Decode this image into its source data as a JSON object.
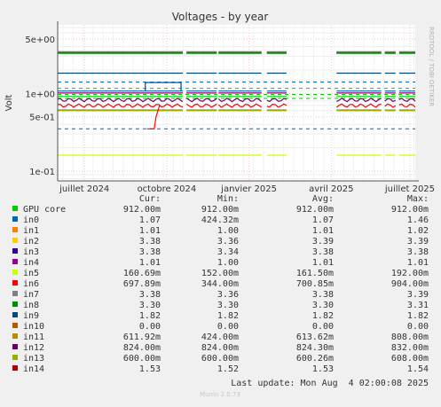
{
  "chart_data": {
    "type": "line",
    "title": "Voltages - by year",
    "ylabel": "Volt",
    "y_scale": "log",
    "y_ticks": [
      {
        "value": 5.0,
        "label": "5e+00"
      },
      {
        "value": 1.0,
        "label": "1e+00"
      },
      {
        "value": 0.5,
        "label": "5e-01"
      },
      {
        "value": 0.1,
        "label": "1e-01"
      }
    ],
    "x_ticks": [
      "juillet 2024",
      "octobre 2024",
      "janvier 2025",
      "avril 2025",
      "juillet 2025"
    ],
    "side_label": "RRDTOOL / TOBI OETIKER",
    "grid": true,
    "table_headers": [
      "Cur:",
      "Min:",
      "Avg:",
      "Max:"
    ],
    "series": [
      {
        "name": "GPU core",
        "color": "#00cc00",
        "cur": "912.00m",
        "min": "912.00m",
        "avg": "912.00m",
        "max": "912.00m",
        "level": 0.912,
        "dashed": true
      },
      {
        "name": "in0",
        "color": "#0066b3",
        "cur": "1.07",
        "min": "424.32m",
        "avg": "1.07",
        "max": "1.46",
        "level": 1.07,
        "dashed": false
      },
      {
        "name": "in1",
        "color": "#ff8000",
        "cur": "1.01",
        "min": "1.00",
        "avg": "1.01",
        "max": "1.02",
        "level": 1.01,
        "dashed": false
      },
      {
        "name": "in2",
        "color": "#ffcc00",
        "cur": "3.38",
        "min": "3.36",
        "avg": "3.39",
        "max": "3.39",
        "level": 3.38,
        "dashed": false
      },
      {
        "name": "in3",
        "color": "#330099",
        "cur": "3.38",
        "min": "3.34",
        "avg": "3.38",
        "max": "3.38",
        "level": 3.38,
        "dashed": false
      },
      {
        "name": "in4",
        "color": "#990099",
        "cur": "1.01",
        "min": "1.00",
        "avg": "1.01",
        "max": "1.01",
        "level": 1.01,
        "dashed": false
      },
      {
        "name": "in5",
        "color": "#ccff00",
        "cur": "160.69m",
        "min": "152.00m",
        "avg": "161.50m",
        "max": "192.00m",
        "level": 0.1607,
        "dashed": false
      },
      {
        "name": "in6",
        "color": "#ff0000",
        "cur": "697.89m",
        "min": "344.00m",
        "avg": "700.85m",
        "max": "904.00m",
        "level": 0.698,
        "dashed": false
      },
      {
        "name": "in7",
        "color": "#808080",
        "cur": "3.38",
        "min": "3.36",
        "avg": "3.38",
        "max": "3.39",
        "level": 3.38,
        "dashed": false
      },
      {
        "name": "in8",
        "color": "#008f00",
        "cur": "3.30",
        "min": "3.30",
        "avg": "3.30",
        "max": "3.31",
        "level": 3.3,
        "dashed": false
      },
      {
        "name": "in9",
        "color": "#00487d",
        "cur": "1.82",
        "min": "1.82",
        "avg": "1.82",
        "max": "1.82",
        "level": 1.82,
        "dashed": false
      },
      {
        "name": "in10",
        "color": "#b35a00",
        "cur": "0.00",
        "min": "0.00",
        "avg": "0.00",
        "max": "0.00",
        "level": 0,
        "dashed": false
      },
      {
        "name": "in11",
        "color": "#b38f00",
        "cur": "611.92m",
        "min": "424.00m",
        "avg": "613.62m",
        "max": "808.00m",
        "level": 0.612,
        "dashed": false
      },
      {
        "name": "in12",
        "color": "#6b006b",
        "cur": "824.00m",
        "min": "824.00m",
        "avg": "824.30m",
        "max": "832.00m",
        "level": 0.824,
        "dashed": false
      },
      {
        "name": "in13",
        "color": "#8fb300",
        "cur": "600.00m",
        "min": "600.00m",
        "avg": "600.26m",
        "max": "608.00m",
        "level": 0.6,
        "dashed": false
      },
      {
        "name": "in14",
        "color": "#b30000",
        "cur": "1.53",
        "min": "1.52",
        "avg": "1.53",
        "max": "1.54",
        "level": 1.53,
        "dashed": false
      }
    ],
    "thresholds": [
      {
        "value": 1.4,
        "color": "#0066b3"
      },
      {
        "value": 0.35,
        "color": "#0066b3"
      },
      {
        "value": 0.97,
        "color": "#00cc00"
      },
      {
        "value": 1.16,
        "color": "#00cc00"
      },
      {
        "value": 0.86,
        "color": "#00cc00"
      }
    ],
    "data_segments": [
      {
        "from": 0.0,
        "to": 0.35
      },
      {
        "from": 0.36,
        "to": 0.445
      },
      {
        "from": 0.45,
        "to": 0.57
      },
      {
        "from": 0.585,
        "to": 0.64
      },
      {
        "from": 0.78,
        "to": 0.905
      },
      {
        "from": 0.915,
        "to": 0.945
      },
      {
        "from": 0.955,
        "to": 1.0
      }
    ],
    "blue_step_range": {
      "from": 0.245,
      "to": 0.345
    }
  },
  "footer": {
    "last_update": "Last update: Mon Aug  4 02:00:08 2025",
    "munin": "Munin 2.0.73"
  }
}
